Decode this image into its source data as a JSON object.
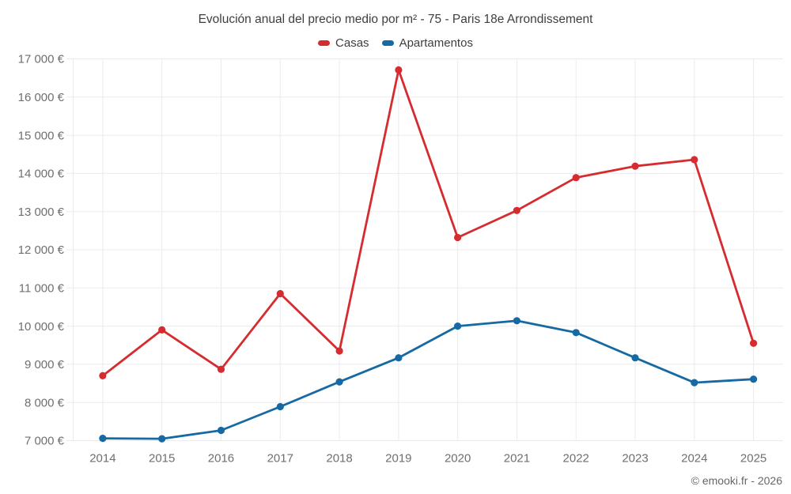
{
  "title": "Evolución anual del precio medio por m² - 75 - Paris 18e Arrondissement",
  "footer": "© emooki.fr - 2026",
  "colors": {
    "casas": "#d62b2f",
    "apartamentos": "#1669a2",
    "grid": "#ebebeb",
    "title_text": "#3e3e3e",
    "axis_text": "#6f6f6f",
    "footer_text": "#666666",
    "background": "#ffffff"
  },
  "legend": {
    "items": [
      {
        "label": "Casas",
        "color": "#d62b2f"
      },
      {
        "label": "Apartamentos",
        "color": "#1669a2"
      }
    ]
  },
  "chart_data": {
    "type": "line",
    "title": "Evolución anual del precio medio por m² - 75 - Paris 18e Arrondissement",
    "x": [
      "2014",
      "2015",
      "2016",
      "2017",
      "2018",
      "2019",
      "2020",
      "2021",
      "2022",
      "2023",
      "2024",
      "2025"
    ],
    "series": [
      {
        "name": "Casas",
        "color": "#d62b2f",
        "values": [
          8700,
          9900,
          8870,
          10850,
          9350,
          16710,
          12320,
          13030,
          13890,
          14190,
          14360,
          9550
        ]
      },
      {
        "name": "Apartamentos",
        "color": "#1669a2",
        "values": [
          7060,
          7050,
          7270,
          7890,
          8540,
          9170,
          10000,
          10140,
          9830,
          9170,
          8520,
          8610
        ]
      }
    ],
    "xlabel": "",
    "ylabel": "",
    "ylim": [
      7000,
      17000
    ],
    "ytick_step": 1000,
    "ytick_format": "{value} €",
    "grid": true,
    "legend_position": "top"
  }
}
